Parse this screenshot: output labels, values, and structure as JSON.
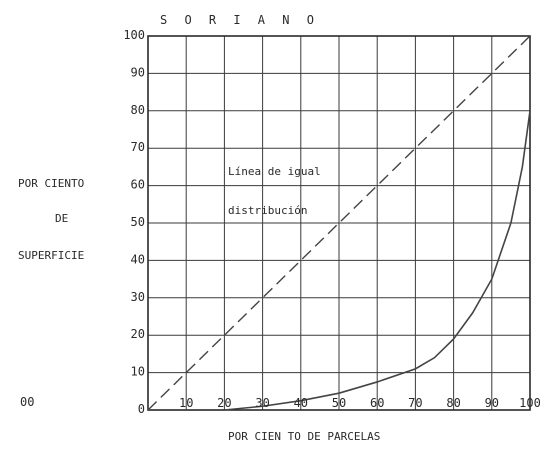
{
  "chart_data": {
    "type": "line",
    "title": "S O R I A N O",
    "xlabel": "POR CIEN TO DE PARCELAS",
    "ylabel_lines": [
      "POR CIENTO",
      "DE",
      "SUPERFICIE"
    ],
    "xlim": [
      0,
      100
    ],
    "ylim": [
      0,
      100
    ],
    "x_ticks": [
      10,
      20,
      30,
      40,
      50,
      60,
      70,
      80,
      90,
      100
    ],
    "y_ticks": [
      0,
      10,
      20,
      30,
      40,
      50,
      60,
      70,
      80,
      90,
      100
    ],
    "grid": true,
    "annotation_lines": [
      "Línea de igual",
      "distribución"
    ],
    "stray_label": "00",
    "series": [
      {
        "style": "dashed",
        "x": [
          0,
          100
        ],
        "y": [
          0,
          100
        ]
      },
      {
        "style": "solid",
        "x": [
          0,
          10,
          20,
          30,
          40,
          50,
          60,
          70,
          75,
          80,
          85,
          90,
          95,
          98,
          100
        ],
        "y": [
          0,
          0,
          0,
          1,
          2.5,
          4.5,
          7.5,
          11,
          14,
          19,
          26,
          35,
          50,
          65,
          80
        ]
      }
    ]
  }
}
